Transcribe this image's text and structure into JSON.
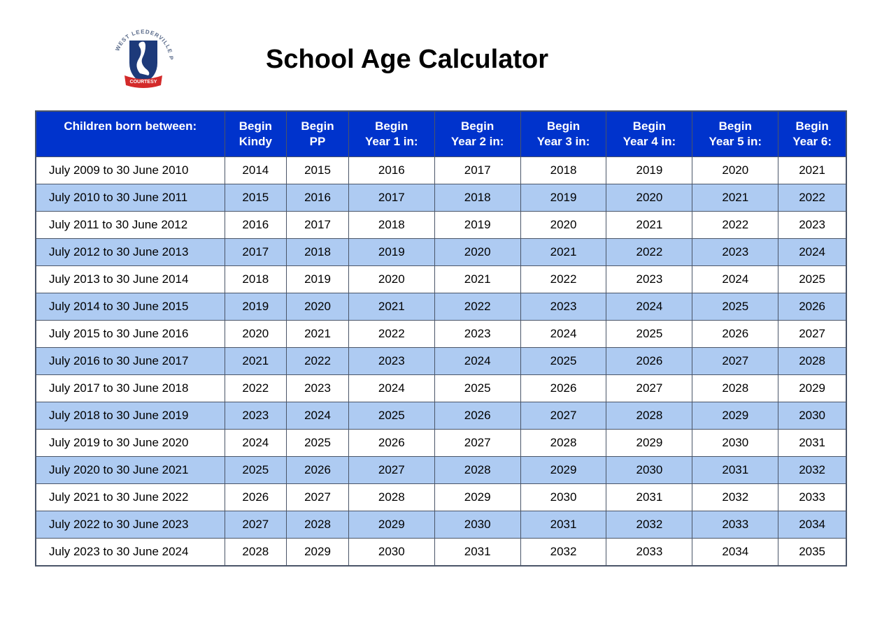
{
  "title": "School Age Calculator",
  "logo": {
    "text_top": "WEST LEEDERVILLE",
    "text_side": "PRIMARY",
    "banner_text": "COURTESY",
    "shield_color": "#1d3a7a",
    "banner_color": "#d32a2a",
    "text_color": "#5a6b8a"
  },
  "table": {
    "header_bg": "#0033cc",
    "header_fg": "#ffffff",
    "row_even_bg": "#ffffff",
    "row_odd_bg": "#aecbf2",
    "border_color": "#4a5568",
    "columns": [
      "Children born between:",
      "Begin Kindy",
      "Begin PP",
      "Begin Year 1 in:",
      "Begin Year 2 in:",
      "Begin Year 3 in:",
      "Begin Year 4 in:",
      "Begin Year 5 in:",
      "Begin Year 6:"
    ],
    "rows": [
      [
        "July 2009 to 30 June 2010",
        "2014",
        "2015",
        "2016",
        "2017",
        "2018",
        "2019",
        "2020",
        "2021"
      ],
      [
        "July 2010 to 30 June 2011",
        "2015",
        "2016",
        "2017",
        "2018",
        "2019",
        "2020",
        "2021",
        "2022"
      ],
      [
        "July 2011 to 30 June 2012",
        "2016",
        "2017",
        "2018",
        "2019",
        "2020",
        "2021",
        "2022",
        "2023"
      ],
      [
        "July 2012 to 30 June 2013",
        "2017",
        "2018",
        "2019",
        "2020",
        "2021",
        "2022",
        "2023",
        "2024"
      ],
      [
        "July 2013 to 30 June 2014",
        "2018",
        "2019",
        "2020",
        "2021",
        "2022",
        "2023",
        "2024",
        "2025"
      ],
      [
        "July 2014 to 30 June 2015",
        "2019",
        "2020",
        "2021",
        "2022",
        "2023",
        "2024",
        "2025",
        "2026"
      ],
      [
        "July 2015 to 30 June 2016",
        "2020",
        "2021",
        "2022",
        "2023",
        "2024",
        "2025",
        "2026",
        "2027"
      ],
      [
        "July 2016 to 30 June 2017",
        "2021",
        "2022",
        "2023",
        "2024",
        "2025",
        "2026",
        "2027",
        "2028"
      ],
      [
        "July 2017 to 30 June 2018",
        "2022",
        "2023",
        "2024",
        "2025",
        "2026",
        "2027",
        "2028",
        "2029"
      ],
      [
        "July 2018 to 30 June 2019",
        "2023",
        "2024",
        "2025",
        "2026",
        "2027",
        "2028",
        "2029",
        "2030"
      ],
      [
        "July 2019 to 30 June 2020",
        "2024",
        "2025",
        "2026",
        "2027",
        "2028",
        "2029",
        "2030",
        "2031"
      ],
      [
        "July 2020 to 30 June 2021",
        "2025",
        "2026",
        "2027",
        "2028",
        "2029",
        "2030",
        "2031",
        "2032"
      ],
      [
        "July 2021 to 30 June 2022",
        "2026",
        "2027",
        "2028",
        "2029",
        "2030",
        "2031",
        "2032",
        "2033"
      ],
      [
        "July 2022 to 30 June 2023",
        "2027",
        "2028",
        "2029",
        "2030",
        "2031",
        "2032",
        "2033",
        "2034"
      ],
      [
        "July 2023 to 30 June 2024",
        "2028",
        "2029",
        "2030",
        "2031",
        "2032",
        "2033",
        "2034",
        "2035"
      ]
    ]
  }
}
